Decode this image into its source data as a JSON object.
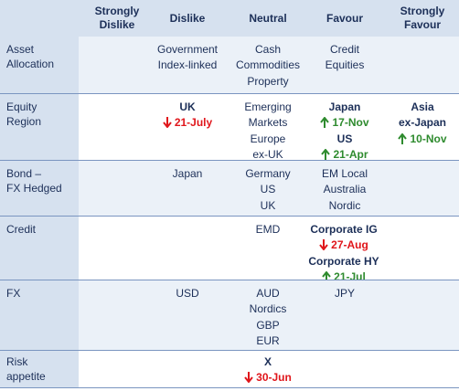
{
  "columns": {
    "strongly_dislike": "Strongly\nDislike",
    "dislike": "Dislike",
    "neutral": "Neutral",
    "favour": "Favour",
    "strongly_favour": "Strongly\nFavour"
  },
  "rows": [
    {
      "label": "Asset\nAllocation",
      "dislike": [
        "Government",
        "Index-linked"
      ],
      "neutral": [
        "Cash",
        "Commodities",
        "Property"
      ],
      "favour": [
        "Credit",
        "Equities"
      ]
    },
    {
      "label": "Equity\nRegion",
      "dislike": [
        {
          "name": "UK",
          "dir": "down",
          "date": "21-July"
        }
      ],
      "neutral": [
        "Emerging",
        "Markets",
        "Europe",
        "ex-UK"
      ],
      "favour": [
        {
          "name": "Japan",
          "dir": "up",
          "date": "17-Nov"
        },
        {
          "name": "US",
          "dir": "up",
          "date": "21-Apr"
        }
      ],
      "strongly_favour": [
        {
          "name": "Asia\nex-Japan",
          "dir": "up",
          "date": "10-Nov"
        }
      ]
    },
    {
      "label": "Bond –\nFX Hedged",
      "dislike": [
        "Japan"
      ],
      "neutral": [
        "Germany",
        "US",
        "UK"
      ],
      "favour": [
        "EM Local",
        "Australia",
        "Nordic"
      ]
    },
    {
      "label": "Credit",
      "neutral": [
        "EMD"
      ],
      "favour": [
        {
          "name": "Corporate IG",
          "dir": "down",
          "date": "27-Aug"
        },
        {
          "name": "Corporate HY",
          "dir": "up",
          "date": "21-Jul"
        }
      ]
    },
    {
      "label": "FX",
      "dislike": [
        "USD"
      ],
      "neutral": [
        "AUD",
        "Nordics",
        "GBP",
        "EUR"
      ],
      "favour": [
        "JPY"
      ]
    },
    {
      "label": "Risk\nappetite",
      "neutral": [
        {
          "name": "X",
          "dir": "down",
          "date": "30-Jun"
        }
      ]
    }
  ],
  "colors": {
    "header_bg": "#d6e1ef",
    "text": "#1c2f58",
    "down": "#e0161b",
    "up": "#2e8b2e"
  }
}
